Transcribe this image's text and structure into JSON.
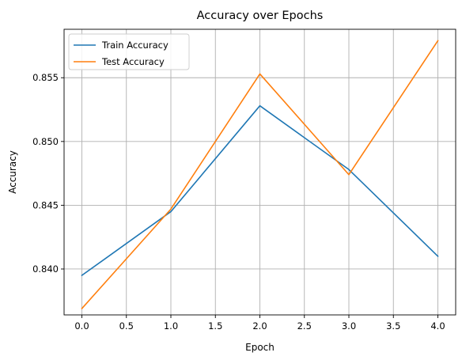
{
  "chart_data": {
    "type": "line",
    "title": "Accuracy over Epochs",
    "xlabel": "Epoch",
    "ylabel": "Accuracy",
    "xlim": [
      -0.2,
      4.2
    ],
    "ylim": [
      0.8364,
      0.8588
    ],
    "xticks": [
      "0.0",
      "0.5",
      "1.0",
      "1.5",
      "2.0",
      "2.5",
      "3.0",
      "3.5",
      "4.0"
    ],
    "yticks": [
      "0.840",
      "0.845",
      "0.850",
      "0.855"
    ],
    "grid": true,
    "legend_position": "top-left",
    "x": [
      0,
      1,
      2,
      3,
      4
    ],
    "series": [
      {
        "name": "Train Accuracy",
        "color": "#1f77b4",
        "values": [
          0.8395,
          0.8445,
          0.8528,
          0.8478,
          0.841
        ]
      },
      {
        "name": "Test Accuracy",
        "color": "#ff7f0e",
        "values": [
          0.8369,
          0.8447,
          0.8553,
          0.8474,
          0.8579
        ]
      }
    ]
  }
}
